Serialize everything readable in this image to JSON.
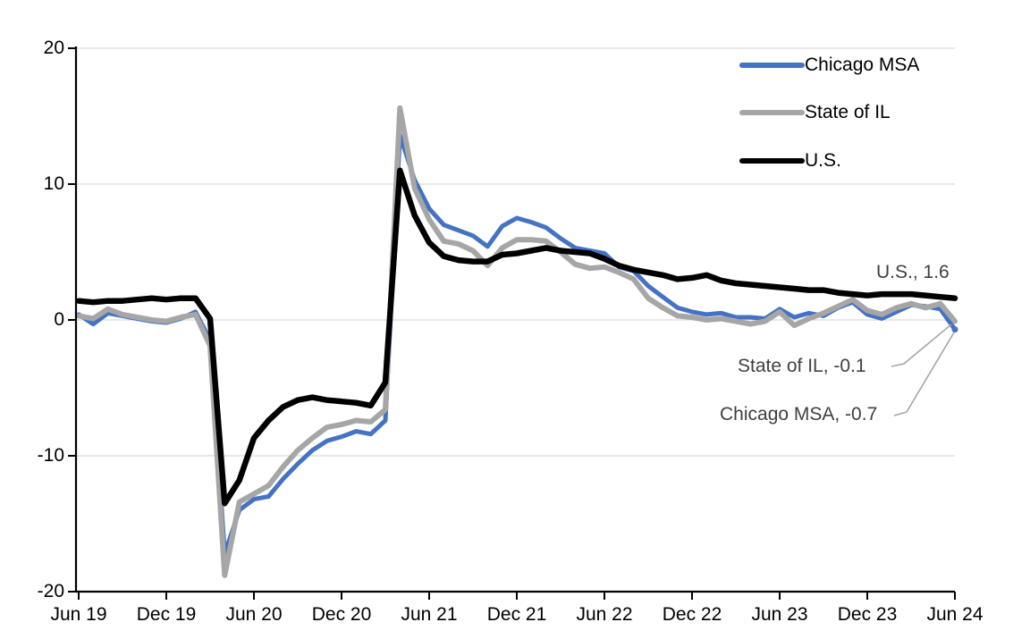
{
  "chart_data": {
    "type": "line",
    "title": "",
    "x_frequency": "monthly",
    "months": [
      "Jun 2019",
      "Jul 2019",
      "Aug 2019",
      "Sep 2019",
      "Oct 2019",
      "Nov 2019",
      "Dec 2019",
      "Jan 2020",
      "Feb 2020",
      "Mar 2020",
      "Apr 2020",
      "May 2020",
      "Jun 2020",
      "Jul 2020",
      "Aug 2020",
      "Sep 2020",
      "Oct 2020",
      "Nov 2020",
      "Dec 2020",
      "Jan 2021",
      "Feb 2021",
      "Mar 2021",
      "Apr 2021",
      "May 2021",
      "Jun 2021",
      "Jul 2021",
      "Aug 2021",
      "Sep 2021",
      "Oct 2021",
      "Nov 2021",
      "Dec 2021",
      "Jan 2022",
      "Feb 2022",
      "Mar 2022",
      "Apr 2022",
      "May 2022",
      "Jun 2022",
      "Jul 2022",
      "Aug 2022",
      "Sep 2022",
      "Oct 2022",
      "Nov 2022",
      "Dec 2022",
      "Jan 2023",
      "Feb 2023",
      "Mar 2023",
      "Apr 2023",
      "May 2023",
      "Jun 2023",
      "Jul 2023",
      "Aug 2023",
      "Sep 2023",
      "Oct 2023",
      "Nov 2023",
      "Dec 2023",
      "Jan 2024",
      "Feb 2024",
      "Mar 2024",
      "Apr 2024",
      "May 2024",
      "Jun 2024"
    ],
    "x_tick_labels": [
      "Jun 19",
      "Dec 19",
      "Jun 20",
      "Dec 20",
      "Jun 21",
      "Dec 21",
      "Jun 22",
      "Dec 22",
      "Jun 23",
      "Dec 23",
      "Jun 24"
    ],
    "y_ticks": [
      20,
      10,
      0,
      -10,
      -20
    ],
    "ylim": [
      -20,
      20
    ],
    "grid": "horizontal",
    "legend_position": "top-right",
    "grid_color": "#D9D9D9",
    "axis_color": "#000000",
    "leader_color": "#A6A6A6",
    "annotation_color": "#404040",
    "series": [
      {
        "name": "Chicago MSA",
        "color": "#4472C4",
        "values": [
          0.4,
          -0.3,
          0.5,
          0.3,
          0.1,
          -0.1,
          -0.2,
          0.1,
          0.6,
          -1.5,
          -17.2,
          -14.0,
          -13.2,
          -13.0,
          -11.7,
          -10.6,
          -9.6,
          -8.9,
          -8.6,
          -8.2,
          -8.4,
          -7.4,
          13.6,
          10.3,
          8.2,
          7.0,
          6.6,
          6.2,
          5.4,
          6.9,
          7.5,
          7.2,
          6.8,
          6.0,
          5.3,
          5.1,
          4.9,
          3.9,
          3.6,
          2.5,
          1.7,
          0.9,
          0.6,
          0.4,
          0.5,
          0.2,
          0.2,
          0.1,
          0.8,
          0.2,
          0.5,
          0.3,
          0.9,
          1.3,
          0.4,
          0.1,
          0.6,
          1.1,
          1.0,
          0.8,
          -0.7
        ]
      },
      {
        "name": "State of IL",
        "color": "#A6A6A6",
        "values": [
          0.3,
          0.1,
          0.8,
          0.4,
          0.2,
          0.0,
          -0.1,
          0.2,
          0.4,
          -1.9,
          -18.8,
          -13.4,
          -12.8,
          -12.2,
          -10.8,
          -9.6,
          -8.7,
          -7.9,
          -7.7,
          -7.4,
          -7.5,
          -6.6,
          15.6,
          9.7,
          7.4,
          5.8,
          5.6,
          5.1,
          4.0,
          5.3,
          5.9,
          5.9,
          5.8,
          5.0,
          4.1,
          3.8,
          3.9,
          3.5,
          3.0,
          1.6,
          0.9,
          0.3,
          0.2,
          0.0,
          0.1,
          -0.1,
          -0.3,
          -0.1,
          0.6,
          -0.4,
          0.1,
          0.5,
          1.0,
          1.5,
          0.7,
          0.4,
          0.9,
          1.2,
          0.9,
          1.2,
          -0.1
        ]
      },
      {
        "name": "U.S.",
        "color": "#000000",
        "values": [
          1.4,
          1.3,
          1.4,
          1.4,
          1.5,
          1.6,
          1.5,
          1.6,
          1.6,
          0.1,
          -13.5,
          -11.8,
          -8.7,
          -7.4,
          -6.4,
          -5.9,
          -5.7,
          -5.9,
          -6.0,
          -6.1,
          -6.3,
          -4.6,
          11.0,
          7.7,
          5.7,
          4.7,
          4.4,
          4.3,
          4.3,
          4.8,
          4.9,
          5.1,
          5.3,
          5.1,
          5.0,
          4.9,
          4.5,
          4.0,
          3.7,
          3.5,
          3.3,
          3.0,
          3.1,
          3.3,
          2.9,
          2.7,
          2.6,
          2.5,
          2.4,
          2.3,
          2.2,
          2.2,
          2.0,
          1.9,
          1.8,
          1.9,
          1.9,
          1.9,
          1.8,
          1.7,
          1.6
        ]
      }
    ],
    "annotations": [
      {
        "series": "U.S.",
        "text": "U.S., 1.6"
      },
      {
        "series": "State of IL",
        "text": "State of IL, -0.1"
      },
      {
        "series": "Chicago MSA",
        "text": "Chicago MSA, -0.7"
      }
    ]
  }
}
